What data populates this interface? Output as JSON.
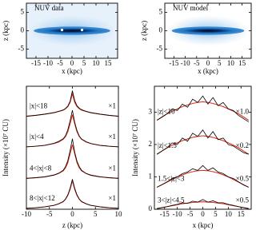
{
  "chart_data": [
    {
      "type": "image",
      "title": "NUV data",
      "xlabel": "x (kpc)",
      "ylabel": "z (kpc)",
      "xlim": [
        -19,
        19
      ],
      "ylim": [
        -7.5,
        7.5
      ],
      "xticks": [
        -15,
        -10,
        -5,
        0,
        5,
        10,
        15
      ],
      "yticks": [
        -5,
        0,
        5
      ],
      "color": "#1f78c8",
      "background": "#e6f1fb"
    },
    {
      "type": "image",
      "title": "NUV model",
      "xlabel": "x (kpc)",
      "ylabel": "z (kpc)",
      "xlim": [
        -19,
        19
      ],
      "ylim": [
        -7.5,
        7.5
      ],
      "xticks": [
        -15,
        -10,
        -5,
        0,
        5,
        10,
        15
      ],
      "yticks": [
        -5,
        0,
        5
      ],
      "color": "#1f78c8",
      "background": "#ffffff"
    },
    {
      "type": "line",
      "xlabel": "z (kpc)",
      "ylabel": "Intensity (×10⁷ CU)",
      "xlim": [
        -10,
        10
      ],
      "ylim": [
        0,
        4.1
      ],
      "xticks": [
        -10,
        -5,
        0,
        5,
        10
      ],
      "data_color": "#000000",
      "model_color": "#e0301e",
      "x": [
        -10,
        -8,
        -6,
        -4,
        -3,
        -2,
        -1.5,
        -1,
        -0.5,
        0,
        0.5,
        1,
        1.5,
        2,
        3,
        4,
        6,
        8,
        10
      ],
      "profiles": [
        {
          "label": "|x|<18",
          "scale": "×1",
          "data": [
            3.1,
            3.13,
            3.17,
            3.22,
            3.26,
            3.31,
            3.36,
            3.44,
            3.6,
            3.95,
            3.62,
            3.45,
            3.37,
            3.32,
            3.26,
            3.22,
            3.17,
            3.13,
            3.1
          ],
          "model": [
            3.1,
            3.13,
            3.17,
            3.22,
            3.26,
            3.3,
            3.35,
            3.42,
            3.56,
            3.85,
            3.56,
            3.42,
            3.35,
            3.3,
            3.26,
            3.22,
            3.17,
            3.13,
            3.1
          ]
        },
        {
          "label": "|x|<4",
          "scale": "×1",
          "data": [
            2.08,
            2.1,
            2.13,
            2.2,
            2.26,
            2.35,
            2.45,
            2.65,
            2.95,
            3.3,
            2.9,
            2.62,
            2.44,
            2.34,
            2.25,
            2.19,
            2.13,
            2.1,
            2.08
          ],
          "model": [
            2.08,
            2.1,
            2.13,
            2.19,
            2.24,
            2.33,
            2.42,
            2.58,
            2.85,
            3.15,
            2.85,
            2.58,
            2.42,
            2.33,
            2.24,
            2.19,
            2.13,
            2.1,
            2.08
          ]
        },
        {
          "label": "4<|x|<8",
          "scale": "×1",
          "data": [
            1.03,
            1.05,
            1.08,
            1.14,
            1.2,
            1.3,
            1.42,
            1.62,
            1.95,
            2.35,
            1.9,
            1.6,
            1.42,
            1.3,
            1.19,
            1.13,
            1.08,
            1.05,
            1.03
          ],
          "model": [
            1.03,
            1.05,
            1.08,
            1.14,
            1.19,
            1.28,
            1.38,
            1.55,
            1.85,
            2.15,
            1.85,
            1.55,
            1.38,
            1.28,
            1.19,
            1.14,
            1.08,
            1.05,
            1.03
          ]
        },
        {
          "label": "8<|x|<12",
          "scale": "×1",
          "data": [
            0.03,
            0.05,
            0.08,
            0.13,
            0.18,
            0.26,
            0.34,
            0.48,
            0.7,
            1.0,
            0.7,
            0.48,
            0.34,
            0.26,
            0.18,
            0.13,
            0.08,
            0.05,
            0.03
          ],
          "model": [
            0.03,
            0.05,
            0.08,
            0.13,
            0.18,
            0.25,
            0.33,
            0.46,
            0.66,
            0.95,
            0.66,
            0.46,
            0.33,
            0.25,
            0.18,
            0.13,
            0.08,
            0.05,
            0.03
          ]
        }
      ]
    },
    {
      "type": "line",
      "xlabel": "x (kpc)",
      "ylabel": "Intensity (×10⁷ CU)",
      "xlim": [
        -19,
        19
      ],
      "ylim": [
        0,
        3.8
      ],
      "xticks": [
        -15,
        -10,
        -5,
        0,
        5,
        10,
        15
      ],
      "yticks": [
        0,
        1,
        2,
        3
      ],
      "data_color": "#000000",
      "model_color": "#e0301e",
      "x": [
        -18,
        -16,
        -14,
        -12,
        -10,
        -8,
        -6,
        -4,
        -2,
        0,
        2,
        4,
        6,
        8,
        10,
        12,
        14,
        16,
        18
      ],
      "profiles": [
        {
          "label": "|z|<10",
          "scale": "×1.0",
          "data": [
            2.75,
            2.85,
            2.95,
            3.1,
            3.05,
            3.25,
            3.15,
            3.4,
            3.3,
            3.5,
            3.25,
            3.45,
            3.2,
            3.3,
            3.1,
            3.05,
            2.9,
            2.8,
            2.7
          ],
          "model": [
            2.75,
            2.85,
            2.95,
            3.03,
            3.1,
            3.17,
            3.22,
            3.27,
            3.3,
            3.32,
            3.3,
            3.27,
            3.22,
            3.17,
            3.1,
            3.03,
            2.95,
            2.85,
            2.75
          ]
        },
        {
          "label": "|z|<1.5",
          "scale": "×0.2",
          "data": [
            1.7,
            1.8,
            1.9,
            2.05,
            2.0,
            2.2,
            2.1,
            2.35,
            2.25,
            2.45,
            2.2,
            2.4,
            2.15,
            2.2,
            2.0,
            1.95,
            1.85,
            1.75,
            1.7
          ],
          "model": [
            1.7,
            1.8,
            1.9,
            1.98,
            2.05,
            2.12,
            2.17,
            2.22,
            2.25,
            2.27,
            2.25,
            2.22,
            2.17,
            2.12,
            2.05,
            1.98,
            1.9,
            1.8,
            1.7
          ]
        },
        {
          "label": "1.5<|z|<3",
          "scale": "×0.5",
          "data": [
            0.68,
            0.76,
            0.85,
            0.95,
            1.0,
            1.1,
            1.15,
            1.25,
            1.2,
            1.35,
            1.2,
            1.28,
            1.15,
            1.1,
            1.0,
            0.95,
            0.85,
            0.75,
            0.68
          ],
          "model": [
            0.68,
            0.76,
            0.84,
            0.92,
            1.0,
            1.06,
            1.12,
            1.16,
            1.19,
            1.2,
            1.19,
            1.16,
            1.12,
            1.06,
            1.0,
            0.92,
            0.84,
            0.76,
            0.68
          ]
        },
        {
          "label": "3<|z|<4.5",
          "scale": "×0.5",
          "data": [
            0.02,
            0.05,
            0.08,
            0.12,
            0.15,
            0.2,
            0.18,
            0.25,
            0.22,
            0.3,
            0.22,
            0.26,
            0.2,
            0.2,
            0.15,
            0.12,
            0.08,
            0.05,
            0.02
          ],
          "model": [
            0.02,
            0.05,
            0.08,
            0.11,
            0.14,
            0.17,
            0.19,
            0.21,
            0.22,
            0.23,
            0.22,
            0.21,
            0.19,
            0.17,
            0.14,
            0.11,
            0.08,
            0.05,
            0.02
          ]
        }
      ]
    }
  ]
}
